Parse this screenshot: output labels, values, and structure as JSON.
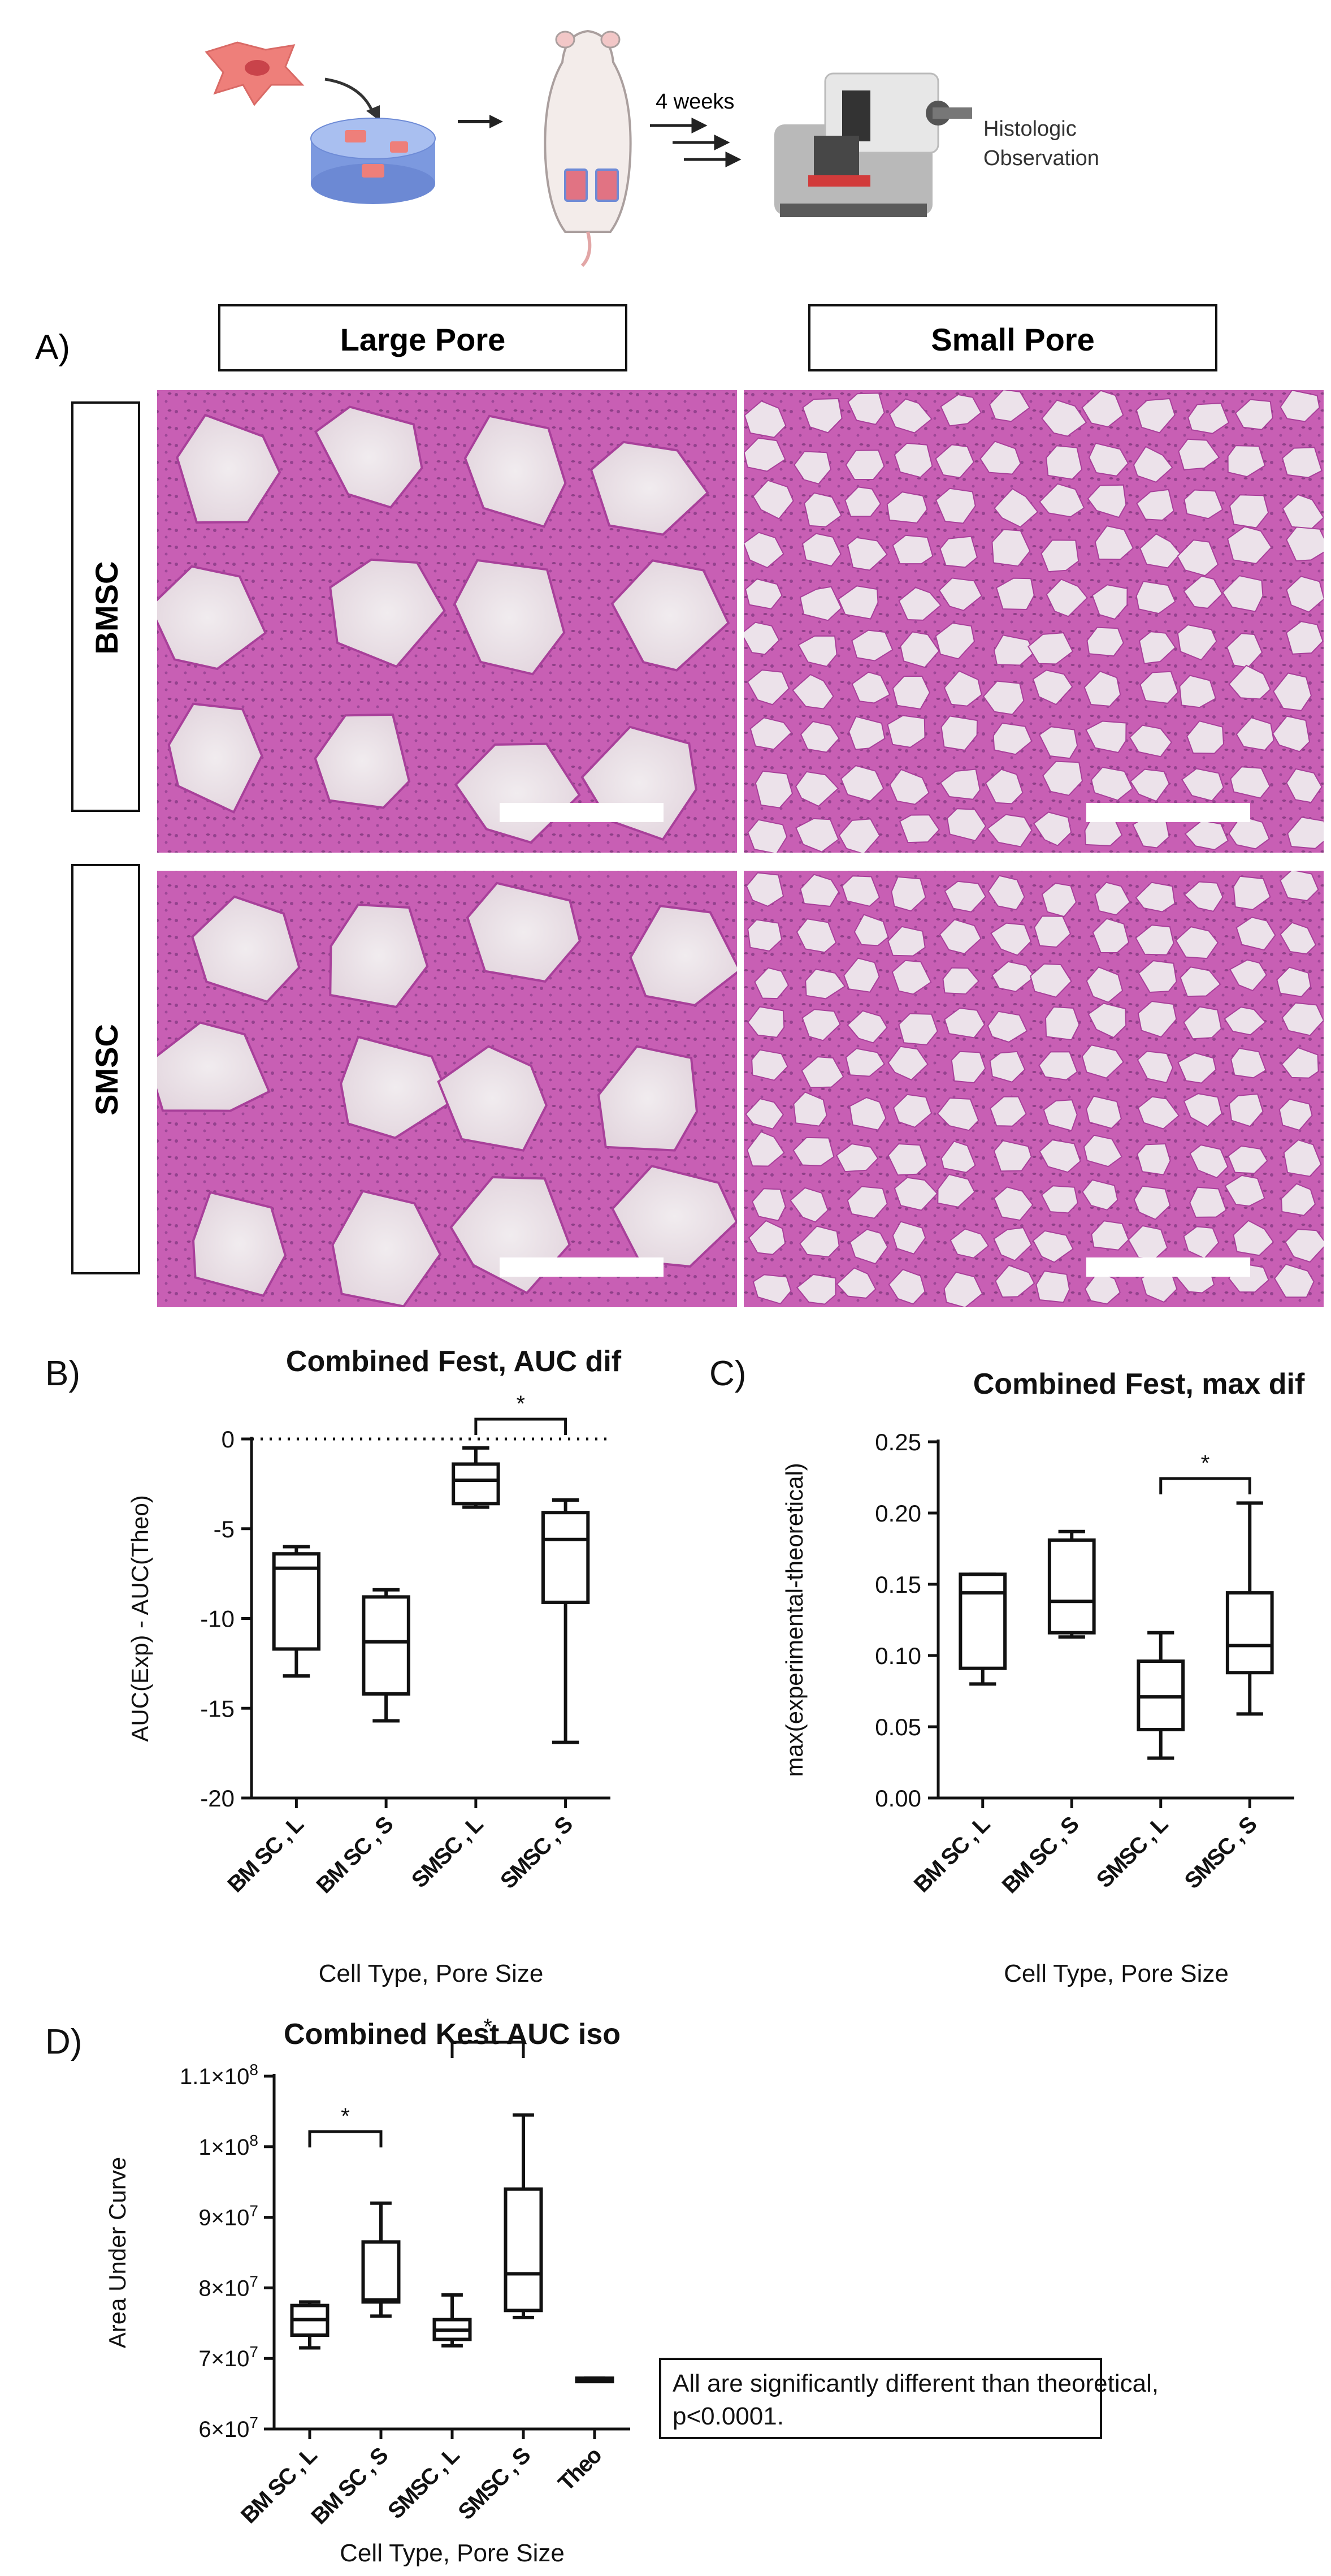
{
  "workflow": {
    "duration_label": "4 weeks",
    "observation_label_1": "Histologic",
    "observation_label_2": "Observation"
  },
  "panel_a": {
    "letter": "A)",
    "column_headers": [
      "Large Pore",
      "Small Pore"
    ],
    "row_headers": [
      "BMSC",
      "SMSC"
    ],
    "tissue_color": "#c85fb4",
    "scaffold_color": "#ece2ea"
  },
  "panel_b": {
    "letter": "B)",
    "chart_data": {
      "type": "box",
      "title": "Combined Fest, AUC dif",
      "xlabel": "Cell Type, Pore Size",
      "ylabel": "AUC(Exp) - AUC(Theo)",
      "categories": [
        "BM SC , L",
        "BM SC , S",
        "SMSC , L",
        "SMSC , S"
      ],
      "yticks": [
        "0",
        "-5",
        "-10",
        "-15",
        "-20"
      ],
      "ylim": [
        -20,
        0
      ],
      "reference_line": 0,
      "boxes": [
        {
          "min": -13.2,
          "q1": -11.7,
          "median": -7.2,
          "q3": -6.4,
          "max": -6.0
        },
        {
          "min": -15.7,
          "q1": -14.2,
          "median": -11.3,
          "q3": -8.8,
          "max": -8.4
        },
        {
          "min": -3.8,
          "q1": -3.6,
          "median": -2.3,
          "q3": -1.4,
          "max": -0.5
        },
        {
          "min": -16.9,
          "q1": -9.1,
          "median": -5.6,
          "q3": -4.1,
          "max": -3.4
        }
      ],
      "significance": [
        {
          "from": 2,
          "to": 3,
          "label": "*"
        }
      ]
    }
  },
  "panel_c": {
    "letter": "C)",
    "chart_data": {
      "type": "box",
      "title": "Combined Fest, max dif",
      "xlabel": "Cell Type, Pore Size",
      "ylabel": "max(experimental-theoretical)",
      "categories": [
        "BM SC , L",
        "BM SC , S",
        "SMSC , L",
        "SMSC , S"
      ],
      "yticks": [
        "0.25",
        "0.20",
        "0.15",
        "0.10",
        "0.05",
        "0.00"
      ],
      "ylim": [
        0,
        0.25
      ],
      "boxes": [
        {
          "min": 0.08,
          "q1": 0.091,
          "median": 0.144,
          "q3": 0.157,
          "max": 0.157
        },
        {
          "min": 0.113,
          "q1": 0.116,
          "median": 0.138,
          "q3": 0.181,
          "max": 0.187
        },
        {
          "min": 0.028,
          "q1": 0.048,
          "median": 0.071,
          "q3": 0.096,
          "max": 0.116
        },
        {
          "min": 0.059,
          "q1": 0.088,
          "median": 0.107,
          "q3": 0.144,
          "max": 0.207
        }
      ],
      "significance": [
        {
          "from": 2,
          "to": 3,
          "label": "*"
        }
      ]
    }
  },
  "panel_d": {
    "letter": "D)",
    "chart_data": {
      "type": "box",
      "title": "Combined Kest AUC iso",
      "xlabel": "Cell Type, Pore Size",
      "ylabel": "Area Under Curve",
      "categories": [
        "BM SC , L",
        "BM SC , S",
        "SMSC , L",
        "SMSC , S",
        "Theo"
      ],
      "ytick_mantissas": [
        "1.1×10",
        "1×10",
        "9×10",
        "8×10",
        "7×10",
        "6×10"
      ],
      "ytick_exponents": [
        "8",
        "8",
        "7",
        "7",
        "7",
        "7"
      ],
      "ylim": [
        60000000,
        110000000
      ],
      "boxes": [
        {
          "min": 71500000,
          "q1": 73300000,
          "median": 75500000,
          "q3": 77500000,
          "max": 78000000
        },
        {
          "min": 76000000,
          "q1": 78000000,
          "median": 78300000,
          "q3": 86500000,
          "max": 92000000
        },
        {
          "min": 71800000,
          "q1": 72700000,
          "median": 74000000,
          "q3": 75500000,
          "max": 79000000
        },
        {
          "min": 75800000,
          "q1": 76800000,
          "median": 82000000,
          "q3": 94000000,
          "max": 104500000
        },
        {
          "min": 66800000,
          "q1": 66800000,
          "median": 66800000,
          "q3": 67200000,
          "max": 67200000
        }
      ],
      "significance": [
        {
          "from": 0,
          "to": 1,
          "label": "*"
        },
        {
          "from": 2,
          "to": 3,
          "label": "*"
        }
      ],
      "note": "All are significantly different than theoretical, p<0.0001."
    }
  }
}
